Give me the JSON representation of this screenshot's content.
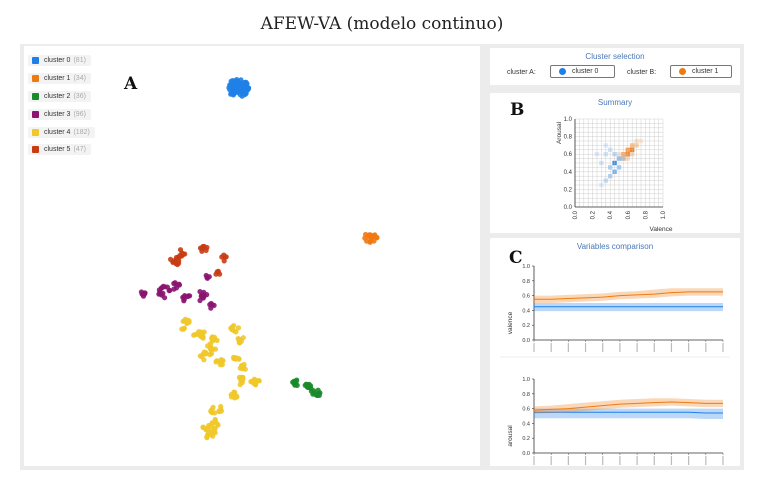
{
  "figure": {
    "title": "AFEW-VA (modelo continuo)"
  },
  "panel_letters": {
    "a": "A",
    "b": "B",
    "c": "C"
  },
  "clusters": [
    {
      "label": "cluster 0",
      "count": "(81)",
      "color": "#1f7fe8"
    },
    {
      "label": "cluster 1",
      "count": "(34)",
      "color": "#f07a12"
    },
    {
      "label": "cluster 2",
      "count": "(36)",
      "color": "#1a8a2a"
    },
    {
      "label": "cluster 3",
      "count": "(96)",
      "color": "#8a1470"
    },
    {
      "label": "cluster 4",
      "count": "(182)",
      "color": "#f0c82a"
    },
    {
      "label": "cluster 5",
      "count": "(47)",
      "color": "#c83c14"
    }
  ],
  "selection": {
    "heading": "Cluster selection",
    "cluster_a_label": "cluster A:",
    "cluster_a_value": "cluster 0",
    "cluster_b_label": "cluster B:",
    "cluster_b_value": "cluster 1",
    "color_a": "#1f7fe8",
    "color_b": "#f07a12"
  },
  "summary": {
    "heading": "Summary",
    "xlabel": "Valence",
    "ylabel": "Arousal",
    "xticks": [
      "0.0",
      "0.2",
      "0.4",
      "0.6",
      "0.8",
      "1.0"
    ],
    "yticks": [
      "0.0",
      "0.2",
      "0.4",
      "0.6",
      "0.8",
      "1.0"
    ]
  },
  "comparison": {
    "heading": "Variables comparison",
    "valence_label": "valence",
    "arousal_label": "arousal",
    "yticks": [
      "0.0",
      "0.2",
      "0.4",
      "0.6",
      "0.8",
      "1.0"
    ]
  },
  "chart_data": [
    {
      "type": "scatter",
      "xlabel": "",
      "ylabel": "",
      "series": [
        {
          "name": "cluster 0",
          "color": "#1f7fe8",
          "points": [
            [
              0.5,
              0.9
            ]
          ]
        },
        {
          "name": "cluster 1",
          "color": "#f07a12",
          "points": [
            [
              0.85,
              0.55
            ]
          ]
        },
        {
          "name": "cluster 2",
          "color": "#1a8a2a",
          "points": [
            [
              0.7,
              0.22
            ]
          ]
        },
        {
          "name": "cluster 3",
          "color": "#8a1470",
          "points": [
            [
              0.35,
              0.42
            ]
          ]
        },
        {
          "name": "cluster 4",
          "color": "#f0c82a",
          "points": [
            [
              0.45,
              0.25
            ]
          ]
        },
        {
          "name": "cluster 5",
          "color": "#c83c14",
          "points": [
            [
              0.4,
              0.52
            ]
          ]
        }
      ]
    },
    {
      "type": "heatmap",
      "xlabel": "Valence",
      "ylabel": "Arousal",
      "xlim": [
        0,
        1
      ],
      "ylim": [
        0,
        1
      ],
      "series": [
        {
          "name": "cluster 0",
          "color": "#1f7fe8",
          "cells": [
            [
              0.25,
              0.6,
              0.15
            ],
            [
              0.35,
              0.6,
              0.2
            ],
            [
              0.3,
              0.5,
              0.2
            ],
            [
              0.4,
              0.45,
              0.35
            ],
            [
              0.45,
              0.5,
              0.9
            ],
            [
              0.45,
              0.4,
              0.6
            ],
            [
              0.4,
              0.35,
              0.35
            ],
            [
              0.35,
              0.3,
              0.25
            ],
            [
              0.3,
              0.25,
              0.15
            ],
            [
              0.5,
              0.55,
              0.5
            ],
            [
              0.55,
              0.55,
              0.3
            ],
            [
              0.45,
              0.6,
              0.3
            ],
            [
              0.4,
              0.65,
              0.2
            ],
            [
              0.35,
              0.7,
              0.15
            ],
            [
              0.5,
              0.45,
              0.4
            ]
          ]
        },
        {
          "name": "cluster 1",
          "color": "#f07a12",
          "cells": [
            [
              0.55,
              0.6,
              0.6
            ],
            [
              0.6,
              0.6,
              0.85
            ],
            [
              0.6,
              0.65,
              0.7
            ],
            [
              0.65,
              0.65,
              0.9
            ],
            [
              0.65,
              0.7,
              0.45
            ],
            [
              0.7,
              0.7,
              0.35
            ],
            [
              0.7,
              0.75,
              0.2
            ],
            [
              0.75,
              0.75,
              0.15
            ],
            [
              0.55,
              0.55,
              0.3
            ],
            [
              0.6,
              0.55,
              0.25
            ],
            [
              0.65,
              0.6,
              0.3
            ],
            [
              0.5,
              0.6,
              0.2
            ]
          ]
        }
      ]
    },
    {
      "type": "area",
      "ylabel": "valence",
      "ylim": [
        0,
        1
      ],
      "series": [
        {
          "name": "cluster 0",
          "color": "#1f7fe8",
          "mean": [
            0.45,
            0.45,
            0.45,
            0.45,
            0.45,
            0.45,
            0.45,
            0.45,
            0.45,
            0.45,
            0.45,
            0.45
          ],
          "lower": [
            0.39,
            0.39,
            0.39,
            0.39,
            0.39,
            0.39,
            0.39,
            0.39,
            0.39,
            0.39,
            0.39,
            0.39
          ],
          "upper": [
            0.5,
            0.5,
            0.5,
            0.5,
            0.5,
            0.5,
            0.5,
            0.5,
            0.5,
            0.5,
            0.5,
            0.5
          ]
        },
        {
          "name": "cluster 1",
          "color": "#f07a12",
          "mean": [
            0.55,
            0.55,
            0.56,
            0.57,
            0.58,
            0.6,
            0.61,
            0.62,
            0.64,
            0.65,
            0.65,
            0.65
          ],
          "lower": [
            0.5,
            0.5,
            0.51,
            0.52,
            0.53,
            0.55,
            0.56,
            0.57,
            0.59,
            0.6,
            0.6,
            0.6
          ],
          "upper": [
            0.6,
            0.6,
            0.61,
            0.62,
            0.63,
            0.65,
            0.66,
            0.68,
            0.7,
            0.7,
            0.7,
            0.7
          ]
        }
      ]
    },
    {
      "type": "area",
      "ylabel": "arousal",
      "ylim": [
        0,
        1
      ],
      "series": [
        {
          "name": "cluster 0",
          "color": "#1f7fe8",
          "mean": [
            0.55,
            0.55,
            0.55,
            0.55,
            0.55,
            0.55,
            0.55,
            0.55,
            0.55,
            0.55,
            0.54,
            0.54
          ],
          "lower": [
            0.47,
            0.47,
            0.47,
            0.47,
            0.47,
            0.47,
            0.47,
            0.47,
            0.47,
            0.47,
            0.46,
            0.46
          ],
          "upper": [
            0.6,
            0.6,
            0.6,
            0.6,
            0.6,
            0.6,
            0.6,
            0.6,
            0.6,
            0.6,
            0.6,
            0.6
          ]
        },
        {
          "name": "cluster 1",
          "color": "#f07a12",
          "mean": [
            0.58,
            0.59,
            0.6,
            0.62,
            0.64,
            0.66,
            0.67,
            0.68,
            0.69,
            0.68,
            0.67,
            0.67
          ],
          "lower": [
            0.53,
            0.54,
            0.55,
            0.57,
            0.59,
            0.61,
            0.62,
            0.63,
            0.64,
            0.63,
            0.62,
            0.62
          ],
          "upper": [
            0.63,
            0.64,
            0.66,
            0.68,
            0.7,
            0.72,
            0.73,
            0.74,
            0.74,
            0.73,
            0.72,
            0.72
          ]
        }
      ]
    }
  ]
}
